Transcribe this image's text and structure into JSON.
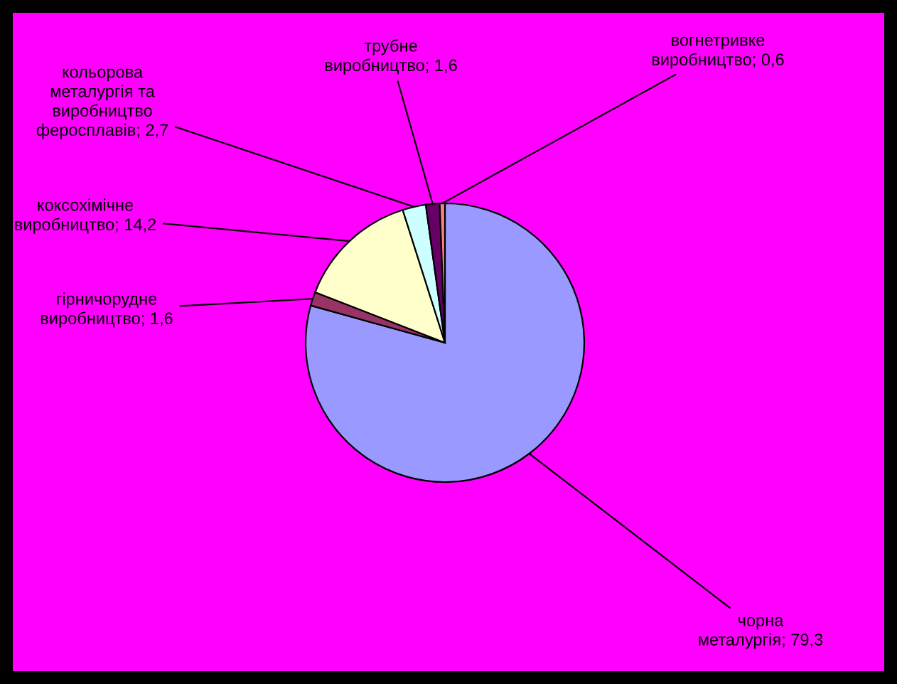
{
  "chart_data": {
    "type": "pie",
    "categories": [
      "чорна\nметалургія",
      "гірничорудне\nвиробництво",
      "коксохімічне\nвиробництво",
      "кольорова\nметалургія та\nвиробництво\nферосплавів",
      "трубне\nвиробництво",
      "вогнетривке\nвиробництво"
    ],
    "values": [
      79.3,
      1.6,
      14.2,
      2.7,
      1.6,
      0.6
    ],
    "value_labels": [
      "79,3",
      "1,6",
      "14,2",
      "2,7",
      "1,6",
      "0,6"
    ],
    "colors": [
      "#9999ff",
      "#993366",
      "#ffffcc",
      "#ccffff",
      "#660066",
      "#ff8080"
    ],
    "legend": false
  }
}
